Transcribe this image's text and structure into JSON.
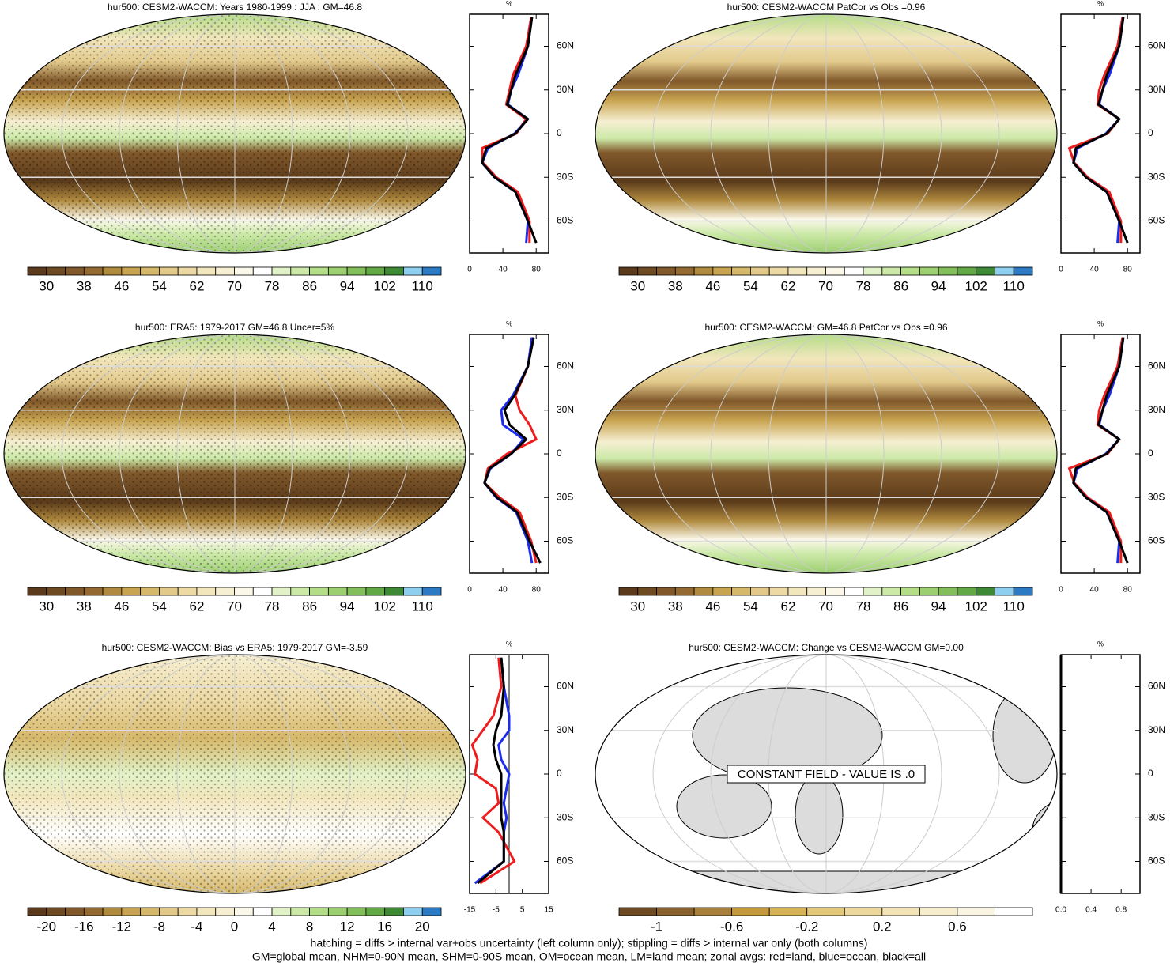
{
  "panels": [
    {
      "title": "hur500: CESM2-WACCM: Years 1980-1999 : JJA : GM=46.8",
      "colorbar": {
        "colors": [
          "#5a3a1a",
          "#6e4a22",
          "#80582a",
          "#946a32",
          "#b08a3e",
          "#c8a450",
          "#d6b86a",
          "#e2c98a",
          "#ecd9a4",
          "#f2e6bc",
          "#f6efd2",
          "#fbf8ea",
          "#ffffff",
          "#e2f2c8",
          "#cce9a8",
          "#b4dd88",
          "#9ccf70",
          "#82bf5a",
          "#62a845",
          "#3e8a34",
          "#8ecfef",
          "#2c7ac4"
        ],
        "labels": [
          30,
          38,
          46,
          54,
          62,
          70,
          78,
          86,
          94,
          102,
          110
        ]
      },
      "zonal": {
        "type": "line",
        "unit": "%",
        "xlim": [
          0,
          95
        ],
        "xticks": [
          0,
          40,
          80
        ],
        "ylim": [
          -82,
          82
        ],
        "yticks": [
          {
            "value": 60,
            "label": "60N"
          },
          {
            "value": 30,
            "label": "30N"
          },
          0,
          {
            "value": -30,
            "label": "30S"
          },
          {
            "value": -60,
            "label": "60S"
          }
        ],
        "lat": [
          80,
          60,
          40,
          30,
          20,
          10,
          0,
          -10,
          -20,
          -30,
          -40,
          -60,
          -75
        ],
        "series": [
          {
            "color": "#ee1c1c",
            "values": [
              74,
              68,
              52,
              48,
              44,
              68,
              56,
              15,
              16,
              32,
              58,
              72,
              72
            ]
          },
          {
            "color": "#1c2cee",
            "values": [
              75,
              70,
              58,
              50,
              46,
              70,
              54,
              22,
              15,
              30,
              55,
              70,
              68
            ]
          },
          {
            "color": "#000000",
            "values": [
              75,
              70,
              55,
              50,
              45,
              70,
              55,
              20,
              15,
              30,
              55,
              70,
              80
            ]
          }
        ]
      }
    },
    {
      "title": "hur500: CESM2-WACCM PatCor vs Obs =0.96",
      "colorbar": {
        "colors": [
          "#5a3a1a",
          "#6e4a22",
          "#80582a",
          "#946a32",
          "#b08a3e",
          "#c8a450",
          "#d6b86a",
          "#e2c98a",
          "#ecd9a4",
          "#f2e6bc",
          "#f6efd2",
          "#fbf8ea",
          "#ffffff",
          "#e2f2c8",
          "#cce9a8",
          "#b4dd88",
          "#9ccf70",
          "#82bf5a",
          "#62a845",
          "#3e8a34",
          "#8ecfef",
          "#2c7ac4"
        ],
        "labels": [
          30,
          38,
          46,
          54,
          62,
          70,
          78,
          86,
          94,
          102,
          110
        ]
      },
      "zonal": {
        "type": "line",
        "unit": "%",
        "xlim": [
          0,
          95
        ],
        "xticks": [
          0,
          40,
          80
        ],
        "ylim": [
          -82,
          82
        ],
        "yticks": [
          {
            "value": 60,
            "label": "60N"
          },
          {
            "value": 30,
            "label": "30N"
          },
          0,
          {
            "value": -30,
            "label": "30S"
          },
          {
            "value": -60,
            "label": "60S"
          }
        ],
        "lat": [
          80,
          60,
          40,
          30,
          20,
          10,
          0,
          -10,
          -20,
          -30,
          -40,
          -60,
          -75
        ],
        "series": [
          {
            "color": "#ee1c1c",
            "values": [
              74,
              68,
              52,
              46,
              44,
              70,
              56,
              10,
              16,
              32,
              58,
              72,
              72
            ]
          },
          {
            "color": "#1c2cee",
            "values": [
              75,
              70,
              58,
              50,
              46,
              70,
              54,
              20,
              15,
              30,
              55,
              70,
              68
            ]
          },
          {
            "color": "#000000",
            "values": [
              75,
              70,
              55,
              50,
              45,
              70,
              55,
              18,
              15,
              30,
              55,
              70,
              80
            ]
          }
        ]
      }
    },
    {
      "title": "hur500: ERA5: 1979-2017 GM=46.8 Uncer=5%",
      "colorbar": {
        "colors": [
          "#5a3a1a",
          "#6e4a22",
          "#80582a",
          "#946a32",
          "#b08a3e",
          "#c8a450",
          "#d6b86a",
          "#e2c98a",
          "#ecd9a4",
          "#f2e6bc",
          "#f6efd2",
          "#fbf8ea",
          "#ffffff",
          "#e2f2c8",
          "#cce9a8",
          "#b4dd88",
          "#9ccf70",
          "#82bf5a",
          "#62a845",
          "#3e8a34",
          "#8ecfef",
          "#2c7ac4"
        ],
        "labels": [
          30,
          38,
          46,
          54,
          62,
          70,
          78,
          86,
          94,
          102,
          110
        ]
      },
      "zonal": {
        "type": "line",
        "unit": "%",
        "xlim": [
          0,
          95
        ],
        "xticks": [
          0,
          40,
          80
        ],
        "ylim": [
          -82,
          82
        ],
        "yticks": [
          {
            "value": 60,
            "label": "60N"
          },
          {
            "value": 30,
            "label": "30N"
          },
          0,
          {
            "value": -30,
            "label": "30S"
          },
          {
            "value": -60,
            "label": "60S"
          }
        ],
        "lat": [
          80,
          60,
          40,
          30,
          20,
          10,
          0,
          -10,
          -20,
          -30,
          -40,
          -60,
          -75
        ],
        "series": [
          {
            "color": "#ee1c1c",
            "values": [
              76,
              70,
              55,
              60,
              72,
              80,
              45,
              22,
              18,
              36,
              60,
              74,
              80
            ]
          },
          {
            "color": "#1c2cee",
            "values": [
              75,
              70,
              52,
              38,
              40,
              65,
              50,
              25,
              18,
              32,
              56,
              70,
              75
            ]
          },
          {
            "color": "#000000",
            "values": [
              77,
              70,
              54,
              42,
              48,
              68,
              50,
              24,
              18,
              33,
              57,
              72,
              85
            ]
          }
        ]
      }
    },
    {
      "title": "hur500: CESM2-WACCM: GM=46.8 PatCor vs Obs =0.96",
      "colorbar": {
        "colors": [
          "#5a3a1a",
          "#6e4a22",
          "#80582a",
          "#946a32",
          "#b08a3e",
          "#c8a450",
          "#d6b86a",
          "#e2c98a",
          "#ecd9a4",
          "#f2e6bc",
          "#f6efd2",
          "#fbf8ea",
          "#ffffff",
          "#e2f2c8",
          "#cce9a8",
          "#b4dd88",
          "#9ccf70",
          "#82bf5a",
          "#62a845",
          "#3e8a34",
          "#8ecfef",
          "#2c7ac4"
        ],
        "labels": [
          30,
          38,
          46,
          54,
          62,
          70,
          78,
          86,
          94,
          102,
          110
        ]
      },
      "zonal": {
        "type": "line",
        "unit": "%",
        "xlim": [
          0,
          95
        ],
        "xticks": [
          0,
          40,
          80
        ],
        "ylim": [
          -82,
          82
        ],
        "yticks": [
          {
            "value": 60,
            "label": "60N"
          },
          {
            "value": 30,
            "label": "30N"
          },
          0,
          {
            "value": -30,
            "label": "30S"
          },
          {
            "value": -60,
            "label": "60S"
          }
        ],
        "lat": [
          80,
          60,
          40,
          30,
          20,
          10,
          0,
          -10,
          -20,
          -30,
          -40,
          -60,
          -75
        ],
        "series": [
          {
            "color": "#ee1c1c",
            "values": [
              74,
              68,
              52,
              46,
              44,
              70,
              56,
              10,
              16,
              32,
              58,
              72,
              72
            ]
          },
          {
            "color": "#1c2cee",
            "values": [
              75,
              70,
              58,
              50,
              46,
              70,
              54,
              20,
              15,
              30,
              55,
              70,
              68
            ]
          },
          {
            "color": "#000000",
            "values": [
              75,
              70,
              55,
              50,
              45,
              70,
              55,
              18,
              15,
              30,
              55,
              70,
              80
            ]
          }
        ]
      }
    },
    {
      "title": "hur500: CESM2-WACCM: Bias vs ERA5: 1979-2017 GM=-3.59",
      "colorbar": {
        "colors": [
          "#5a3a1a",
          "#6e4a22",
          "#80582a",
          "#946a32",
          "#b08a3e",
          "#c8a450",
          "#d6b86a",
          "#e2c98a",
          "#ecd9a4",
          "#f2e6bc",
          "#f6efd2",
          "#fbf8ea",
          "#ffffff",
          "#e2f2c8",
          "#cce9a8",
          "#b4dd88",
          "#9ccf70",
          "#82bf5a",
          "#62a845",
          "#3e8a34",
          "#8ecfef",
          "#2c7ac4"
        ],
        "labels": [
          -20,
          -16,
          -12,
          -8,
          -4,
          0,
          4,
          8,
          12,
          16,
          20
        ]
      },
      "zonal": {
        "type": "line",
        "unit": "%",
        "xlim": [
          -15,
          15
        ],
        "xticks": [
          -15,
          -5,
          5,
          15
        ],
        "zero": true,
        "ylim": [
          -82,
          82
        ],
        "yticks": [
          {
            "value": 60,
            "label": "60N"
          },
          {
            "value": 30,
            "label": "30N"
          },
          0,
          {
            "value": -30,
            "label": "30S"
          },
          {
            "value": -60,
            "label": "60S"
          }
        ],
        "lat": [
          80,
          60,
          40,
          30,
          20,
          10,
          0,
          -10,
          -20,
          -30,
          -40,
          -60,
          -75
        ],
        "series": [
          {
            "color": "#ee1c1c",
            "values": [
              -4,
              -3,
              -6,
              -10,
              -14,
              -12,
              -13,
              -5,
              -4,
              -10,
              -4,
              2,
              -11
            ]
          },
          {
            "color": "#1c2cee",
            "values": [
              -3,
              -2,
              0,
              0,
              -4,
              -3,
              0,
              -1,
              -2,
              -1,
              -2,
              -2,
              -13
            ]
          },
          {
            "color": "#000000",
            "values": [
              -3,
              -2,
              -3,
              -5,
              -6,
              -5,
              -3,
              -3,
              -3,
              -3,
              -2,
              -2,
              -12
            ]
          }
        ]
      }
    },
    {
      "title": "hur500: CESM2-WACCM: Change vs CESM2-WACCM GM=0.00",
      "annotation": "CONSTANT FIELD - VALUE IS .0",
      "colorbar": {
        "colors": [
          "#6e4a22",
          "#8a6230",
          "#a8803c",
          "#c49a3c",
          "#d6b456",
          "#e2c878",
          "#ecd89c",
          "#f2e4b6",
          "#f6edcc",
          "#faf5e2",
          "#ffffff"
        ],
        "labels": [
          -1,
          -0.6,
          -0.2,
          0.2,
          0.6
        ]
      },
      "zonal": {
        "type": "line",
        "unit": "%",
        "xlim": [
          0,
          1.05
        ],
        "xticks": [
          {
            "value": 0,
            "label": "0.0"
          },
          0.4,
          0.8
        ],
        "ylim": [
          -82,
          82
        ],
        "yticks": [
          {
            "value": 60,
            "label": "60N"
          },
          {
            "value": 30,
            "label": "30N"
          },
          0,
          {
            "value": -30,
            "label": "30S"
          },
          {
            "value": -60,
            "label": "60S"
          }
        ],
        "lat": [
          82,
          -82
        ],
        "series": [
          {
            "color": "#ee1c1c",
            "values": [
              0,
              0
            ]
          },
          {
            "color": "#1c2cee",
            "values": [
              0,
              0
            ]
          },
          {
            "color": "#000000",
            "values": [
              0,
              0
            ]
          }
        ]
      }
    }
  ],
  "footer": [
    "hatching = diffs > internal var+obs uncertainty (left column only); stippling = diffs > internal var only (both columns)",
    "GM=global mean, NHM=0-90N mean, SHM=0-90S mean, OM=ocean mean, LM=land mean; zonal avgs: red=land, blue=ocean, black=all"
  ]
}
